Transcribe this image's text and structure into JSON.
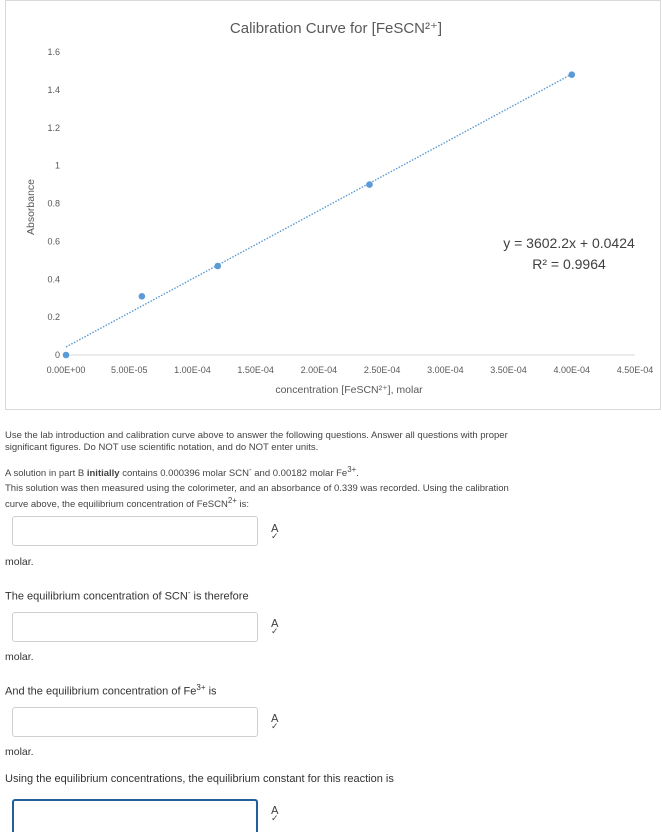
{
  "chart_data": {
    "type": "scatter",
    "title": "Calibration Curve for [FeSCN²⁺]",
    "xlabel": "concentration [FeSCN²⁺], molar",
    "ylabel": "Absorbance",
    "xlim": [
      0,
      0.00045
    ],
    "ylim": [
      0,
      1.6
    ],
    "x_ticks": [
      "0.00E+00",
      "5.00E-05",
      "1.00E-04",
      "1.50E-04",
      "2.00E-04",
      "2.50E-04",
      "3.00E-04",
      "3.50E-04",
      "4.00E-04",
      "4.50E-04"
    ],
    "y_ticks": [
      "0",
      "0.2",
      "0.4",
      "0.6",
      "0.8",
      "1",
      "1.2",
      "1.4",
      "1.6"
    ],
    "series": [
      {
        "x": [
          0,
          6e-05,
          0.00012,
          0.00024,
          0.0004
        ],
        "y": [
          0,
          0.31,
          0.47,
          0.9,
          1.48
        ]
      }
    ],
    "trendline": {
      "slope": 3602.2,
      "intercept": 0.0424,
      "style": "dotted"
    },
    "equation": "y = 3602.2x + 0.0424",
    "r_squared": "R² = 0.9964",
    "marker_color": "#5b9bd5",
    "grid": false
  },
  "page": {
    "instructions": "Use the lab introduction and calibration curve above to answer the following questions. Answer all questions with proper significant figures. Do NOT use scientific notation, and do NOT enter units.",
    "part_b_a": "A solution in part B ",
    "part_b_bold": "initially",
    "part_b_b": " contains 0.000396 molar SCN",
    "part_b_c": " and 0.00182 molar Fe",
    "part_b_d": ".",
    "measure_line": "This solution was then measured using the colorimeter, and an absorbance of 0.339 was recorded. Using the calibration curve above, the equilibrium concentration of FeSCN",
    "measure_end": " is:",
    "minus_sup": "-",
    "three_plus_sup": "3+",
    "two_plus_sup": "2+",
    "molar": "molar.",
    "q2_a": "The equilibrium concentration of SCN",
    "q2_b": " is therefore",
    "q3_a": "And the equilibrium concentration of Fe",
    "q3_b": " is",
    "q4": "Using the equilibrium concentrations, the equilibrium constant for this reaction is",
    "spellcheck_icon": "spellcheck-icon",
    "spell_glyph_top": "A",
    "spell_glyph_bottom": "✓"
  }
}
